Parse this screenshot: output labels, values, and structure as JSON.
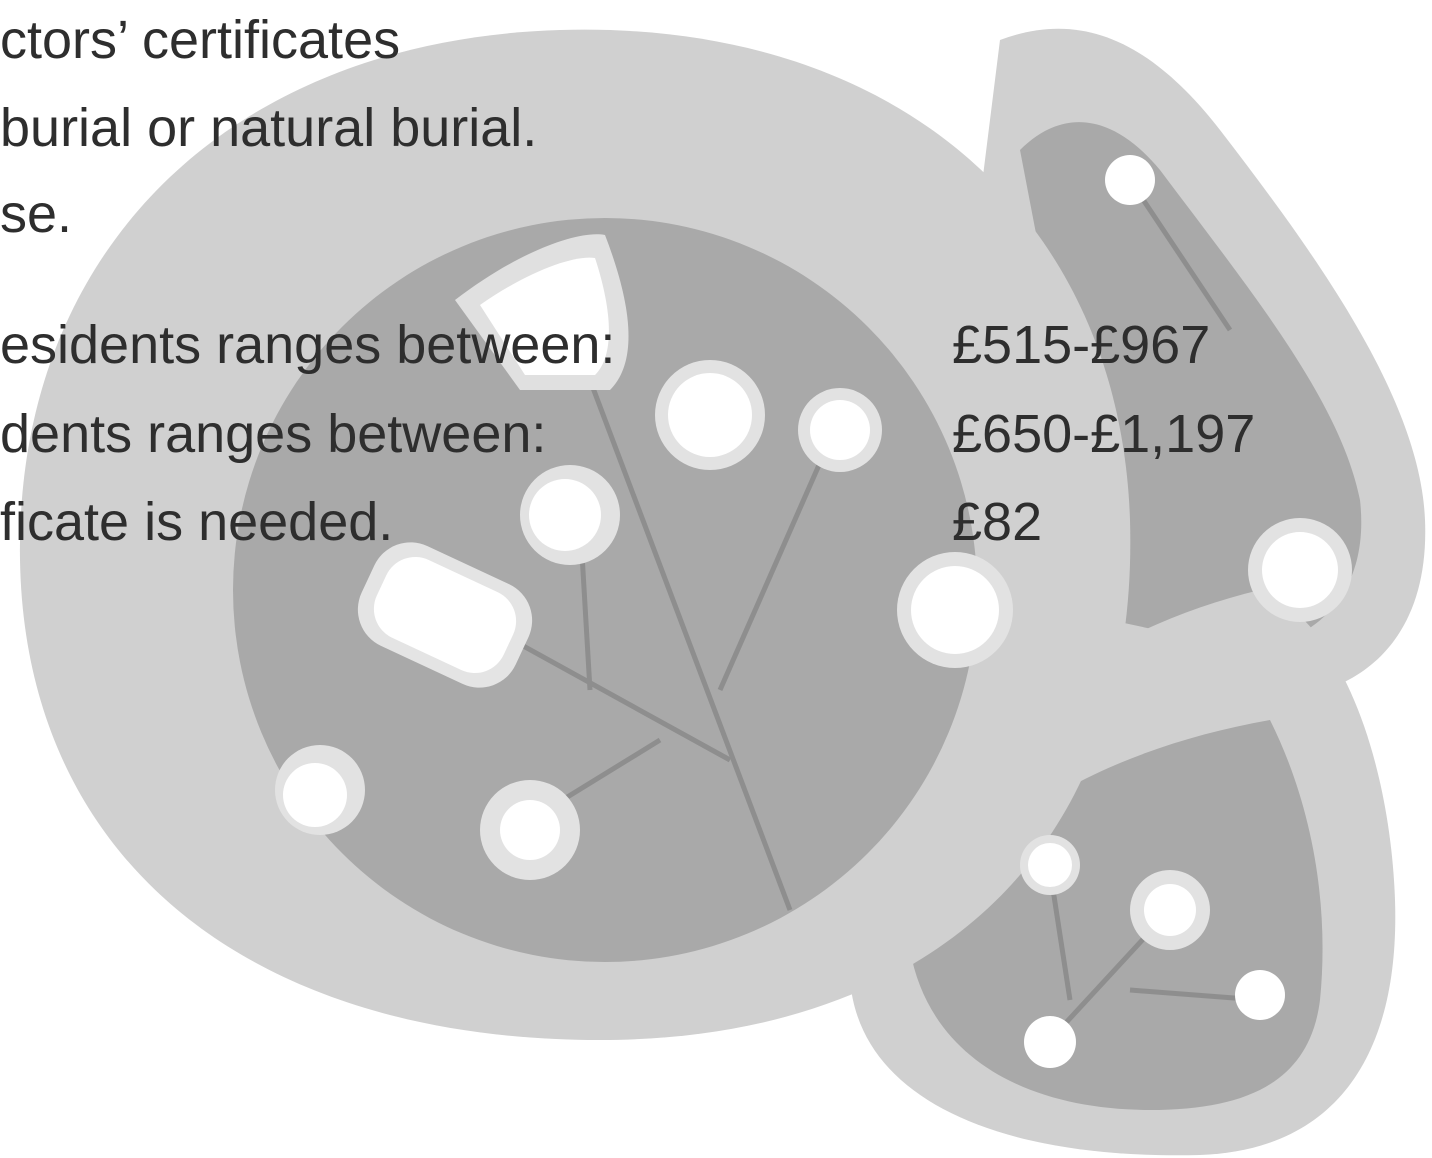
{
  "paragraph": [
    "ctors’ certificates",
    "burial or natural burial.",
    "se."
  ],
  "fees": [
    {
      "label": "esidents ranges between:",
      "price": "£515-£967"
    },
    {
      "label": "dents ranges between:",
      "price": "£650-£1,197"
    },
    {
      "label": "ficate is needed.",
      "price": "£82"
    }
  ]
}
